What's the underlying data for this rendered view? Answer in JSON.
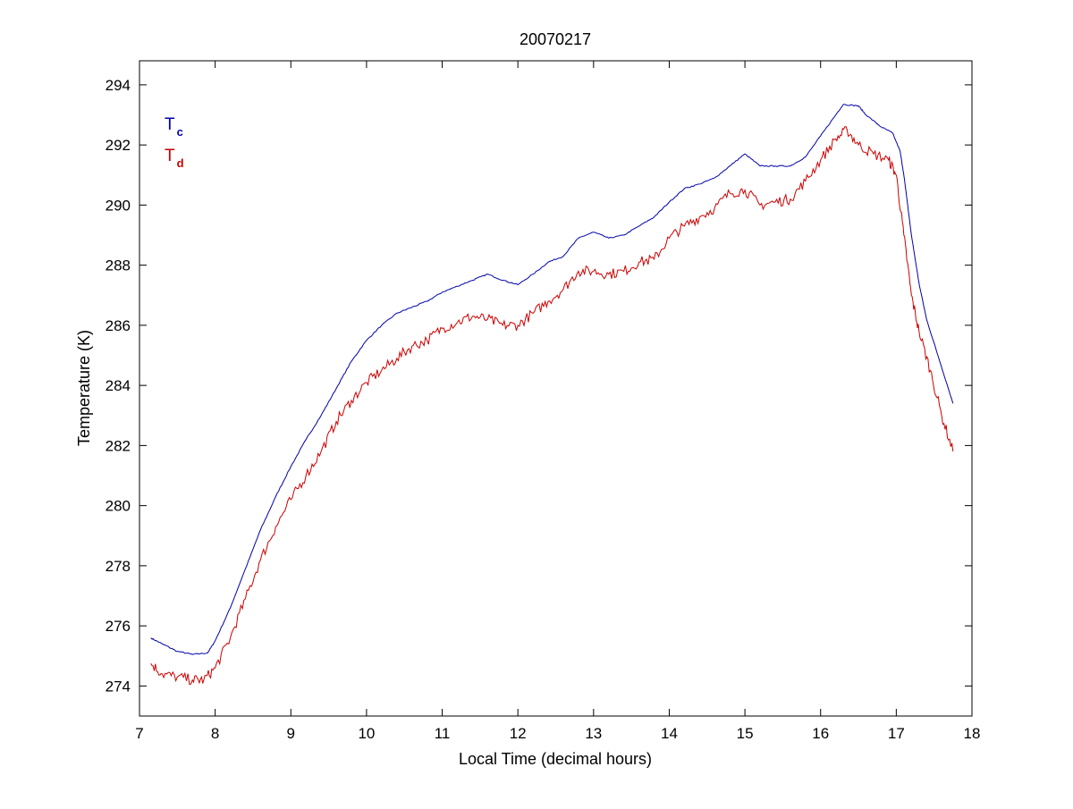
{
  "chart_data": {
    "type": "line",
    "title": "20070217",
    "xlabel": "Local Time (decimal hours)",
    "ylabel": "Temperature (K)",
    "xlim": [
      7,
      18
    ],
    "ylim": [
      273,
      294.8
    ],
    "xticks": [
      7,
      8,
      9,
      10,
      11,
      12,
      13,
      14,
      15,
      16,
      17,
      18
    ],
    "yticks": [
      274,
      276,
      278,
      280,
      282,
      284,
      286,
      288,
      290,
      292,
      294
    ],
    "grid": false,
    "legend_position": "top-left",
    "series": [
      {
        "name": "T",
        "subscript": "c",
        "color": "#0000aa",
        "noise": 0.02,
        "points": [
          [
            7.15,
            275.6
          ],
          [
            7.3,
            275.4
          ],
          [
            7.5,
            275.15
          ],
          [
            7.7,
            275.05
          ],
          [
            7.9,
            275.1
          ],
          [
            8.0,
            275.5
          ],
          [
            8.2,
            276.6
          ],
          [
            8.4,
            277.9
          ],
          [
            8.6,
            279.2
          ],
          [
            8.8,
            280.3
          ],
          [
            9.0,
            281.3
          ],
          [
            9.2,
            282.2
          ],
          [
            9.4,
            283.0
          ],
          [
            9.6,
            283.9
          ],
          [
            9.8,
            284.8
          ],
          [
            10.0,
            285.5
          ],
          [
            10.2,
            286.0
          ],
          [
            10.4,
            286.4
          ],
          [
            10.6,
            286.6
          ],
          [
            10.8,
            286.8
          ],
          [
            11.0,
            287.1
          ],
          [
            11.2,
            287.3
          ],
          [
            11.4,
            287.5
          ],
          [
            11.6,
            287.7
          ],
          [
            11.8,
            287.5
          ],
          [
            12.0,
            287.35
          ],
          [
            12.2,
            287.7
          ],
          [
            12.4,
            288.1
          ],
          [
            12.6,
            288.3
          ],
          [
            12.8,
            288.9
          ],
          [
            13.0,
            289.1
          ],
          [
            13.2,
            288.9
          ],
          [
            13.4,
            289.0
          ],
          [
            13.6,
            289.3
          ],
          [
            13.8,
            289.6
          ],
          [
            14.0,
            290.1
          ],
          [
            14.2,
            290.55
          ],
          [
            14.4,
            290.7
          ],
          [
            14.6,
            290.9
          ],
          [
            14.8,
            291.3
          ],
          [
            15.0,
            291.7
          ],
          [
            15.2,
            291.3
          ],
          [
            15.4,
            291.3
          ],
          [
            15.6,
            291.3
          ],
          [
            15.8,
            291.6
          ],
          [
            16.0,
            292.3
          ],
          [
            16.2,
            293.0
          ],
          [
            16.3,
            293.35
          ],
          [
            16.5,
            293.3
          ],
          [
            16.6,
            293.0
          ],
          [
            16.8,
            292.6
          ],
          [
            16.95,
            292.4
          ],
          [
            17.05,
            291.8
          ],
          [
            17.1,
            291.0
          ],
          [
            17.2,
            289.0
          ],
          [
            17.3,
            287.4
          ],
          [
            17.4,
            286.2
          ],
          [
            17.55,
            285.0
          ],
          [
            17.75,
            283.4
          ]
        ]
      },
      {
        "name": "T",
        "subscript": "d",
        "color": "#cc0000",
        "noise": 0.18,
        "points": [
          [
            7.15,
            274.75
          ],
          [
            7.3,
            274.4
          ],
          [
            7.5,
            274.3
          ],
          [
            7.7,
            274.2
          ],
          [
            7.85,
            274.2
          ],
          [
            8.0,
            274.6
          ],
          [
            8.2,
            275.6
          ],
          [
            8.4,
            276.9
          ],
          [
            8.6,
            278.2
          ],
          [
            8.8,
            279.3
          ],
          [
            9.0,
            280.2
          ],
          [
            9.2,
            281.0
          ],
          [
            9.4,
            281.8
          ],
          [
            9.6,
            282.8
          ],
          [
            9.8,
            283.5
          ],
          [
            10.0,
            284.1
          ],
          [
            10.2,
            284.5
          ],
          [
            10.4,
            284.9
          ],
          [
            10.6,
            285.3
          ],
          [
            10.8,
            285.5
          ],
          [
            11.0,
            285.9
          ],
          [
            11.2,
            286.1
          ],
          [
            11.4,
            286.3
          ],
          [
            11.6,
            286.2
          ],
          [
            11.8,
            286.0
          ],
          [
            12.0,
            286.0
          ],
          [
            12.2,
            286.4
          ],
          [
            12.4,
            286.8
          ],
          [
            12.6,
            287.2
          ],
          [
            12.8,
            287.8
          ],
          [
            13.0,
            287.8
          ],
          [
            13.2,
            287.7
          ],
          [
            13.4,
            287.8
          ],
          [
            13.6,
            288.1
          ],
          [
            13.8,
            288.2
          ],
          [
            14.0,
            288.9
          ],
          [
            14.2,
            289.3
          ],
          [
            14.4,
            289.6
          ],
          [
            14.6,
            289.9
          ],
          [
            14.8,
            290.4
          ],
          [
            15.0,
            290.5
          ],
          [
            15.2,
            290.0
          ],
          [
            15.4,
            290.1
          ],
          [
            15.6,
            290.2
          ],
          [
            15.8,
            290.8
          ],
          [
            16.0,
            291.5
          ],
          [
            16.2,
            292.2
          ],
          [
            16.35,
            292.5
          ],
          [
            16.5,
            292.0
          ],
          [
            16.7,
            291.7
          ],
          [
            16.9,
            291.5
          ],
          [
            17.0,
            291.0
          ],
          [
            17.1,
            289.0
          ],
          [
            17.2,
            287.0
          ],
          [
            17.3,
            285.8
          ],
          [
            17.45,
            284.5
          ],
          [
            17.6,
            283.0
          ],
          [
            17.75,
            281.8
          ]
        ]
      }
    ]
  }
}
